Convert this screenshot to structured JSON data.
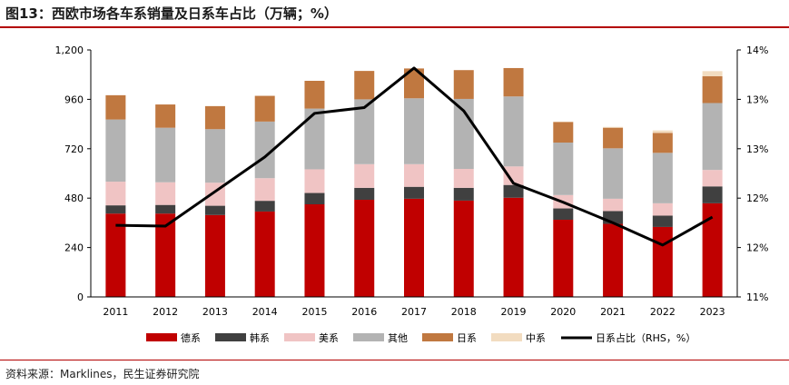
{
  "title": "图13：西欧市场各车系销量及日系车占比（万辆；%）",
  "source": "资料来源：Marklines，民生证券研究院",
  "chart_data": {
    "type": "bar",
    "stacked": true,
    "categories": [
      "2011",
      "2012",
      "2013",
      "2014",
      "2015",
      "2016",
      "2017",
      "2018",
      "2019",
      "2020",
      "2021",
      "2022",
      "2023"
    ],
    "ylim": [
      0,
      1200
    ],
    "yticks": [
      "0",
      "240",
      "480",
      "720",
      "960",
      "1,200"
    ],
    "y2lim": [
      11,
      14
    ],
    "y2ticks": [
      "11%",
      "12%",
      "12%",
      "13%",
      "13%",
      "14%"
    ],
    "series": [
      {
        "name": "德系",
        "color": "#c00000",
        "values": [
          405,
          405,
          398,
          415,
          450,
          472,
          477,
          468,
          482,
          375,
          355,
          340,
          455
        ]
      },
      {
        "name": "韩系",
        "color": "#404040",
        "values": [
          40,
          42,
          45,
          52,
          55,
          58,
          58,
          62,
          62,
          55,
          62,
          55,
          82
        ]
      },
      {
        "name": "美系",
        "color": "#f0c4c4",
        "values": [
          115,
          110,
          112,
          110,
          115,
          115,
          110,
          92,
          90,
          65,
          60,
          60,
          80
        ]
      },
      {
        "name": "其他",
        "color": "#b3b3b3",
        "values": [
          302,
          265,
          260,
          275,
          295,
          315,
          320,
          340,
          340,
          255,
          245,
          245,
          325
        ]
      },
      {
        "name": "日系",
        "color": "#c07840",
        "values": [
          118,
          113,
          112,
          125,
          135,
          138,
          145,
          140,
          138,
          100,
          100,
          97,
          130
        ]
      },
      {
        "name": "中系",
        "color": "#f2dcc0",
        "values": [
          0,
          0,
          0,
          0,
          0,
          0,
          0,
          0,
          0,
          2,
          4,
          12,
          25
        ]
      }
    ],
    "line": {
      "name": "日系占比（RHS，%）",
      "color": "#000000",
      "values": [
        11.87,
        11.86,
        12.28,
        12.7,
        13.23,
        13.3,
        13.78,
        13.26,
        12.38,
        12.15,
        11.9,
        11.63,
        11.97
      ]
    }
  }
}
